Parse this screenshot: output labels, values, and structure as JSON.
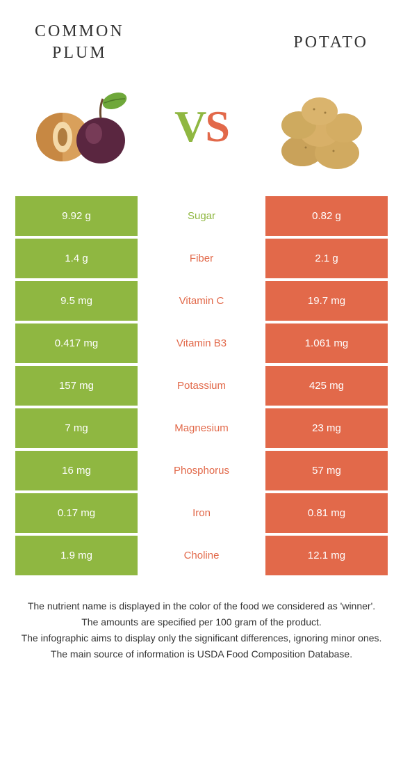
{
  "header": {
    "left_title": "Common\nPlum",
    "right_title": "Potato"
  },
  "vs": {
    "v": "V",
    "s": "S"
  },
  "colors": {
    "left": "#8fb741",
    "right": "#e2694a",
    "background": "#ffffff"
  },
  "rows": [
    {
      "left": "9.92 g",
      "nutrient": "Sugar",
      "right": "0.82 g",
      "winner": "left"
    },
    {
      "left": "1.4 g",
      "nutrient": "Fiber",
      "right": "2.1 g",
      "winner": "right"
    },
    {
      "left": "9.5 mg",
      "nutrient": "Vitamin C",
      "right": "19.7 mg",
      "winner": "right"
    },
    {
      "left": "0.417 mg",
      "nutrient": "Vitamin B3",
      "right": "1.061 mg",
      "winner": "right"
    },
    {
      "left": "157 mg",
      "nutrient": "Potassium",
      "right": "425 mg",
      "winner": "right"
    },
    {
      "left": "7 mg",
      "nutrient": "Magnesium",
      "right": "23 mg",
      "winner": "right"
    },
    {
      "left": "16 mg",
      "nutrient": "Phosphorus",
      "right": "57 mg",
      "winner": "right"
    },
    {
      "left": "0.17 mg",
      "nutrient": "Iron",
      "right": "0.81 mg",
      "winner": "right"
    },
    {
      "left": "1.9 mg",
      "nutrient": "Choline",
      "right": "12.1 mg",
      "winner": "right"
    }
  ],
  "footer": {
    "line1": "The nutrient name is displayed in the color of the food we considered as 'winner'.",
    "line2": "The amounts are specified per 100 gram of the product.",
    "line3": "The infographic aims to display only the significant differences, ignoring minor ones.",
    "line4": "The main source of information is USDA Food Composition Database."
  }
}
